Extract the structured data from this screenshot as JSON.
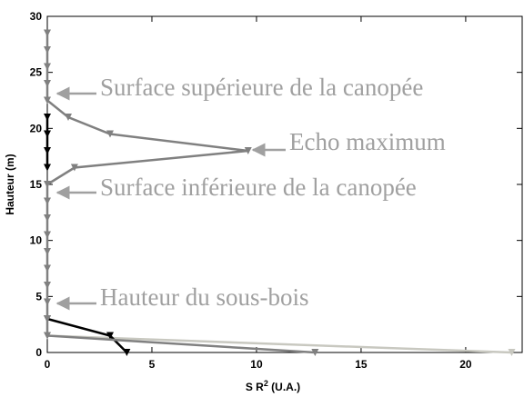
{
  "chart_data": {
    "type": "line",
    "x_label": "S R",
    "x_label_sup": "2",
    "x_label_suffix": " (U.A.)",
    "y_label": "Hauteur (m)",
    "xlim": [
      0,
      22.7
    ],
    "xticks": [
      0,
      5,
      10,
      15,
      20
    ],
    "ylim": [
      0,
      30
    ],
    "yticks": [
      0,
      5,
      10,
      15,
      20,
      25,
      30
    ],
    "series": [
      {
        "color": "#808080",
        "marker": "triangle-down",
        "x": [
          0,
          0,
          0,
          0,
          0,
          1,
          3,
          9.6,
          1.3,
          0,
          0,
          0,
          0,
          0,
          0,
          0,
          0,
          0,
          0,
          12.8
        ],
        "y": [
          28.5,
          27,
          25.5,
          24,
          22.5,
          21,
          19.5,
          18,
          16.5,
          15,
          13.5,
          12,
          10.5,
          9,
          7.5,
          6,
          4.5,
          3,
          1.5,
          0
        ]
      },
      {
        "color": "#000000",
        "marker": "triangle-down",
        "x": [
          0,
          0,
          0,
          0,
          null,
          0,
          3,
          3.8
        ],
        "y": [
          21,
          19.5,
          18,
          16.5,
          null,
          3,
          1.5,
          0
        ]
      },
      {
        "color": "#c8c8c0",
        "marker": "triangle-down",
        "x": [
          0,
          22.2
        ],
        "y": [
          1.5,
          0
        ]
      }
    ],
    "annotations": [
      "Surface supérieure de la canopée",
      "Echo maximum",
      "Surface inférieure de la canopée",
      "Hauteur du sous-bois"
    ]
  }
}
